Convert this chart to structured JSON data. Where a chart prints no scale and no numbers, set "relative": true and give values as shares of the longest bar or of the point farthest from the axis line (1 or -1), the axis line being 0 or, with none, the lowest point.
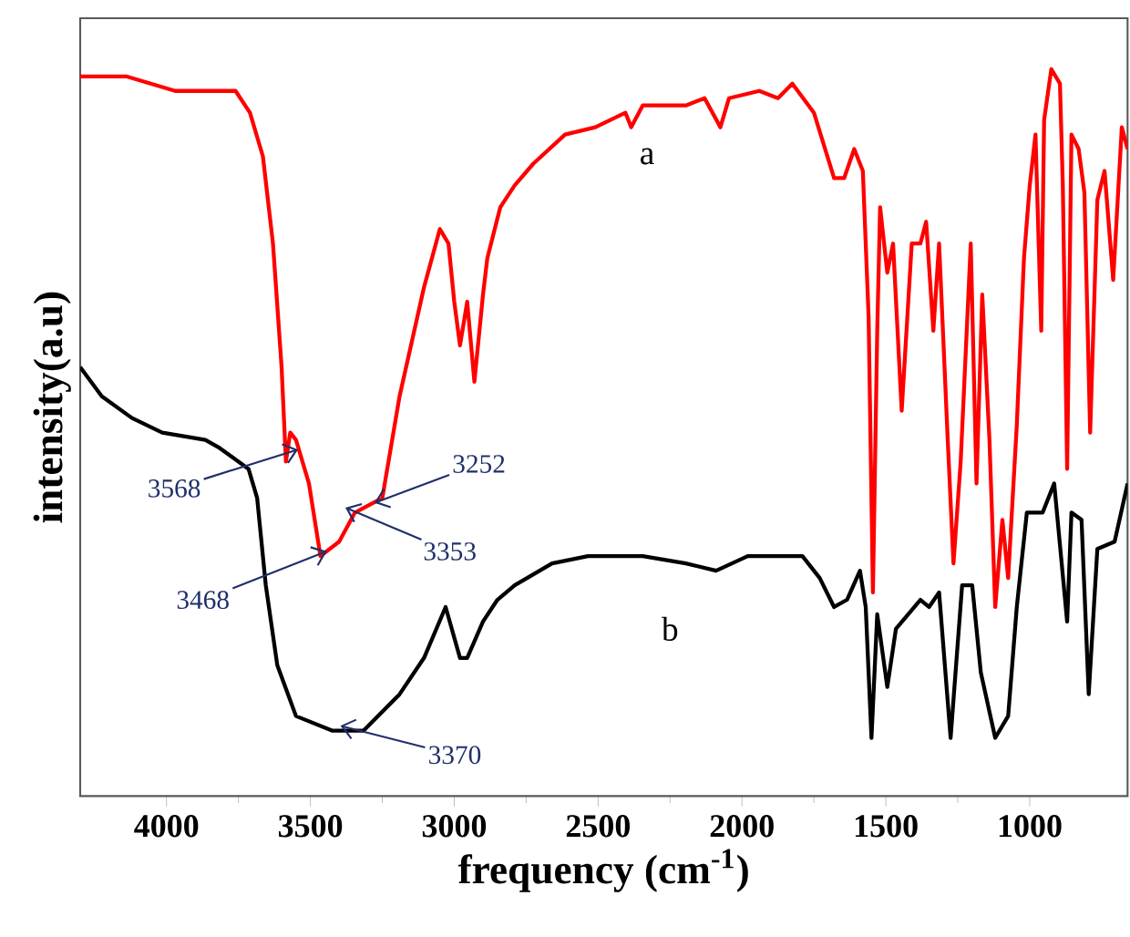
{
  "chart_data": {
    "type": "line",
    "relative": true,
    "xlabel": "frequency (cm$^{-1}$)",
    "ylabel": "intensity(a.u)",
    "xlim": [
      4300,
      660
    ],
    "xticks": [
      4000,
      3500,
      3000,
      2500,
      2000,
      1500,
      1000
    ],
    "tick_labels": "x",
    "legend": false,
    "marker": "none",
    "line_style": "solid",
    "series": [
      {
        "name": "a",
        "color": "#ff0000",
        "x": [
          4300,
          4140,
          3970,
          3760,
          3710,
          3665,
          3630,
          3600,
          3585,
          3570,
          3550,
          3505,
          3465,
          3400,
          3345,
          3250,
          3190,
          3105,
          3050,
          3020,
          3000,
          2980,
          2955,
          2930,
          2900,
          2885,
          2840,
          2790,
          2725,
          2615,
          2510,
          2405,
          2385,
          2345,
          2195,
          2130,
          2075,
          2045,
          1940,
          1875,
          1825,
          1750,
          1680,
          1645,
          1610,
          1580,
          1560,
          1545,
          1530,
          1520,
          1495,
          1475,
          1445,
          1410,
          1380,
          1360,
          1335,
          1315,
          1285,
          1265,
          1240,
          1205,
          1185,
          1165,
          1140,
          1120,
          1095,
          1075,
          1045,
          1020,
          1000,
          980,
          960,
          950,
          925,
          895,
          885,
          870,
          855,
          830,
          810,
          790,
          765,
          740,
          710,
          680,
          660
        ],
        "values": [
          0.99,
          0.99,
          0.97,
          0.97,
          0.94,
          0.88,
          0.76,
          0.59,
          0.46,
          0.5,
          0.49,
          0.43,
          0.33,
          0.35,
          0.39,
          0.41,
          0.55,
          0.7,
          0.78,
          0.76,
          0.68,
          0.62,
          0.68,
          0.57,
          0.69,
          0.74,
          0.81,
          0.84,
          0.87,
          0.91,
          0.92,
          0.94,
          0.92,
          0.95,
          0.95,
          0.96,
          0.92,
          0.96,
          0.97,
          0.96,
          0.98,
          0.94,
          0.85,
          0.85,
          0.89,
          0.86,
          0.66,
          0.28,
          0.64,
          0.81,
          0.72,
          0.76,
          0.53,
          0.76,
          0.76,
          0.79,
          0.64,
          0.76,
          0.49,
          0.32,
          0.46,
          0.76,
          0.43,
          0.69,
          0.49,
          0.26,
          0.38,
          0.3,
          0.51,
          0.74,
          0.84,
          0.91,
          0.64,
          0.93,
          1.0,
          0.98,
          0.84,
          0.45,
          0.91,
          0.89,
          0.83,
          0.5,
          0.82,
          0.86,
          0.71,
          0.92,
          0.89
        ]
      },
      {
        "name": "b",
        "color": "#000000",
        "x": [
          4300,
          4225,
          4120,
          4015,
          3865,
          3820,
          3715,
          3685,
          3655,
          3615,
          3550,
          3425,
          3315,
          3190,
          3105,
          3030,
          2980,
          2955,
          2900,
          2850,
          2790,
          2660,
          2535,
          2345,
          2195,
          2090,
          1980,
          1790,
          1730,
          1680,
          1635,
          1590,
          1570,
          1550,
          1530,
          1495,
          1465,
          1380,
          1350,
          1315,
          1275,
          1235,
          1200,
          1170,
          1120,
          1075,
          1045,
          1010,
          955,
          915,
          870,
          855,
          820,
          795,
          765,
          705,
          660
        ],
        "values": [
          0.59,
          0.55,
          0.52,
          0.5,
          0.49,
          0.48,
          0.45,
          0.41,
          0.29,
          0.18,
          0.11,
          0.09,
          0.09,
          0.14,
          0.19,
          0.26,
          0.19,
          0.19,
          0.24,
          0.27,
          0.29,
          0.32,
          0.33,
          0.33,
          0.32,
          0.31,
          0.33,
          0.33,
          0.3,
          0.26,
          0.27,
          0.31,
          0.26,
          0.08,
          0.25,
          0.15,
          0.23,
          0.27,
          0.26,
          0.28,
          0.08,
          0.29,
          0.29,
          0.17,
          0.08,
          0.11,
          0.26,
          0.39,
          0.39,
          0.43,
          0.24,
          0.39,
          0.38,
          0.14,
          0.34,
          0.35,
          0.43
        ]
      }
    ],
    "annotations": [
      {
        "text": "3568",
        "x": 3568,
        "y": 0.47
      },
      {
        "text": "3468",
        "x": 3468,
        "y": 0.33
      },
      {
        "text": "3353",
        "x": 3353,
        "y": 0.39
      },
      {
        "text": "3252",
        "x": 3252,
        "y": 0.41
      },
      {
        "text": "3370",
        "x": 3370,
        "y": 0.09
      }
    ]
  }
}
